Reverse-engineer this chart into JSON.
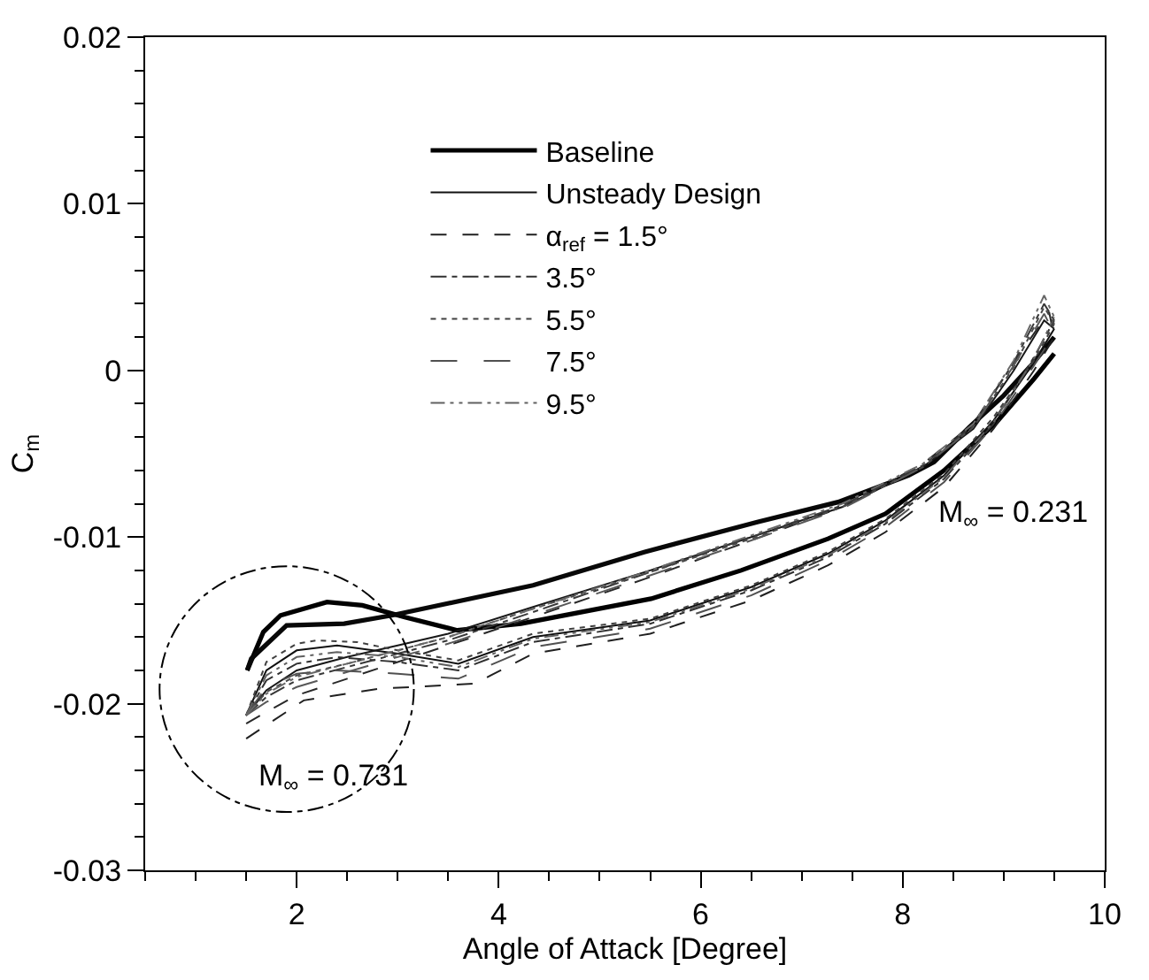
{
  "chart_data": {
    "type": "line",
    "xlabel": "Angle of Attack [Degree]",
    "ylabel": "C$_{m}$",
    "xlim": [
      0.5,
      10
    ],
    "xticks": [
      2,
      4,
      6,
      8,
      10
    ],
    "ylim": [
      -0.03,
      0.02
    ],
    "yticks": [
      -0.03,
      -0.02,
      -0.01,
      0,
      0.01,
      0.02
    ],
    "legend": "top",
    "marker": "none",
    "annotations": [
      "M$_{∞}$ = 0.231",
      "M$_{∞}$ = 0.731"
    ],
    "series": [
      {
        "name": "Baseline",
        "color": "#000000",
        "line_style": "solid",
        "x": [
          1.51,
          1.67,
          1.84,
          2.3,
          2.65,
          3.07,
          3.59,
          4.22,
          5.51,
          6.4,
          7.26,
          7.83,
          8.41,
          8.93,
          9.3,
          9.5
        ],
        "values": [
          -0.018,
          -0.0157,
          -0.0147,
          -0.0139,
          -0.0141,
          -0.0148,
          -0.0156,
          -0.0152,
          -0.0137,
          -0.012,
          -0.0101,
          -0.0086,
          -0.006,
          -0.0031,
          -0.0005,
          0.001
        ]
      },
      {
        "color": "#080808",
        "line_style": "solid",
        "x": [
          1.51,
          1.55,
          1.9,
          2.47,
          2.94,
          4.34,
          5.44,
          6.56,
          7.36,
          8.06,
          8.31,
          8.66,
          9.0,
          9.3,
          9.5
        ],
        "values": [
          -0.018,
          -0.0173,
          -0.0153,
          -0.0152,
          -0.0147,
          -0.0129,
          -0.0109,
          -0.0091,
          -0.0079,
          -0.0063,
          -0.0055,
          -0.0034,
          -0.0015,
          0.0005,
          0.002
        ]
      },
      {
        "name": "Unsteady Design",
        "color": "#101010",
        "line_style": "solid",
        "x": [
          1.5,
          1.7,
          2.0,
          2.4,
          3.0,
          3.6,
          4.34,
          5.5,
          6.5,
          7.26,
          7.83,
          8.41,
          8.9,
          9.3,
          9.5
        ],
        "values": [
          -0.0207,
          -0.018,
          -0.0168,
          -0.0165,
          -0.017,
          -0.0176,
          -0.016,
          -0.015,
          -0.013,
          -0.011,
          -0.009,
          -0.0063,
          -0.003,
          0.0005,
          0.0025
        ]
      },
      {
        "color": "#181818",
        "line_style": "solid",
        "x": [
          1.5,
          1.7,
          2.0,
          2.5,
          3.0,
          3.5,
          4.34,
          5.5,
          6.5,
          7.4,
          8.2,
          8.7,
          9.1,
          9.4,
          9.5
        ],
        "values": [
          -0.0207,
          -0.0192,
          -0.018,
          -0.0172,
          -0.0165,
          -0.0158,
          -0.0142,
          -0.012,
          -0.01,
          -0.0082,
          -0.0058,
          -0.0035,
          0.0,
          0.003,
          0.0025
        ]
      },
      {
        "name": "α$_{ref}$ = 1.5°",
        "color": "#202020",
        "line_style": "dashed",
        "x": [
          1.5,
          2.07,
          2.82,
          3.76,
          4.34,
          5.5,
          6.5,
          7.26,
          7.83,
          8.41,
          8.9,
          9.3,
          9.5
        ],
        "values": [
          -0.0221,
          -0.0198,
          -0.0191,
          -0.0188,
          -0.017,
          -0.0158,
          -0.0138,
          -0.0117,
          -0.0097,
          -0.007,
          -0.0035,
          0.0,
          0.002
        ]
      },
      {
        "color": "#282828",
        "line_style": "dashed",
        "x": [
          1.5,
          1.7,
          2.0,
          2.5,
          3.0,
          3.5,
          4.34,
          5.5,
          6.5,
          7.4,
          8.2,
          8.7,
          9.1,
          9.45,
          9.5
        ],
        "values": [
          -0.0212,
          -0.0205,
          -0.0195,
          -0.0185,
          -0.0175,
          -0.0165,
          -0.0148,
          -0.0124,
          -0.0102,
          -0.0082,
          -0.0056,
          -0.0032,
          0.0005,
          0.0035,
          0.002
        ]
      },
      {
        "name": "3.5°",
        "color": "#303030",
        "line_style": "dashdot",
        "x": [
          1.5,
          1.7,
          2.0,
          2.4,
          3.0,
          3.6,
          4.34,
          5.5,
          6.5,
          7.26,
          7.83,
          8.41,
          8.9,
          9.3,
          9.5
        ],
        "values": [
          -0.0207,
          -0.0186,
          -0.0176,
          -0.0172,
          -0.0175,
          -0.018,
          -0.0163,
          -0.0152,
          -0.0132,
          -0.0112,
          -0.0092,
          -0.0065,
          -0.0032,
          0.0008,
          0.003
        ]
      },
      {
        "color": "#383838",
        "line_style": "dashdot",
        "x": [
          1.5,
          1.7,
          2.0,
          2.5,
          3.0,
          3.5,
          4.34,
          5.5,
          6.5,
          7.4,
          8.2,
          8.7,
          9.1,
          9.4,
          9.5
        ],
        "values": [
          -0.0207,
          -0.0196,
          -0.0186,
          -0.0178,
          -0.017,
          -0.0162,
          -0.0145,
          -0.0121,
          -0.01,
          -0.0081,
          -0.0057,
          -0.0033,
          0.0005,
          0.004,
          0.003
        ]
      },
      {
        "name": "5.5°",
        "color": "#404040",
        "line_style": "dotted",
        "x": [
          1.5,
          1.7,
          2.0,
          2.2,
          2.6,
          3.0,
          3.6,
          4.34,
          5.5,
          6.5,
          7.26,
          7.83,
          8.41,
          8.9,
          9.3,
          9.5
        ],
        "values": [
          -0.0207,
          -0.0175,
          -0.0164,
          -0.0162,
          -0.0163,
          -0.0168,
          -0.0174,
          -0.0158,
          -0.0149,
          -0.0129,
          -0.0109,
          -0.0089,
          -0.0062,
          -0.0028,
          0.0006,
          0.0028
        ]
      },
      {
        "color": "#484848",
        "line_style": "dotted",
        "x": [
          1.5,
          1.7,
          2.0,
          2.5,
          3.0,
          3.5,
          4.34,
          5.5,
          6.5,
          7.4,
          8.2,
          8.7,
          9.1,
          9.4,
          9.5
        ],
        "values": [
          -0.0207,
          -0.0193,
          -0.0183,
          -0.0176,
          -0.0168,
          -0.016,
          -0.0143,
          -0.0121,
          -0.0101,
          -0.0082,
          -0.0058,
          -0.0034,
          0.0002,
          0.0038,
          0.0028
        ]
      },
      {
        "name": "7.5°",
        "color": "#505050",
        "line_style": "longdash",
        "x": [
          1.5,
          1.7,
          2.0,
          2.4,
          3.0,
          3.6,
          4.34,
          5.5,
          6.5,
          7.26,
          7.83,
          8.41,
          8.9,
          9.3,
          9.5
        ],
        "values": [
          -0.0207,
          -0.019,
          -0.0182,
          -0.018,
          -0.0182,
          -0.0185,
          -0.0166,
          -0.0155,
          -0.0135,
          -0.0114,
          -0.0094,
          -0.0067,
          -0.0033,
          0.0003,
          0.0022
        ]
      },
      {
        "color": "#585858",
        "line_style": "longdash",
        "x": [
          1.5,
          1.7,
          2.0,
          2.5,
          3.0,
          3.5,
          4.34,
          5.5,
          6.5,
          7.4,
          8.2,
          8.7,
          9.1,
          9.4,
          9.5
        ],
        "values": [
          -0.0207,
          -0.0199,
          -0.019,
          -0.0181,
          -0.0172,
          -0.0164,
          -0.0147,
          -0.0123,
          -0.0102,
          -0.0083,
          -0.0058,
          -0.0034,
          0.0003,
          0.0034,
          0.0022
        ]
      },
      {
        "name": "9.5°",
        "color": "#606060",
        "line_style": "dashdotdot",
        "x": [
          1.5,
          1.7,
          2.0,
          2.4,
          3.0,
          3.6,
          4.34,
          5.5,
          6.5,
          7.26,
          7.83,
          8.41,
          8.9,
          9.3,
          9.5
        ],
        "values": [
          -0.0207,
          -0.0183,
          -0.0172,
          -0.0169,
          -0.0172,
          -0.0178,
          -0.0161,
          -0.0151,
          -0.0131,
          -0.0111,
          -0.0091,
          -0.0064,
          -0.0031,
          0.0007,
          0.0032
        ]
      },
      {
        "color": "#686868",
        "line_style": "dashdotdot",
        "x": [
          1.5,
          1.7,
          2.0,
          2.5,
          3.0,
          3.5,
          4.34,
          5.5,
          6.5,
          7.4,
          8.2,
          8.7,
          9.1,
          9.4,
          9.5
        ],
        "values": [
          -0.0207,
          -0.0194,
          -0.0184,
          -0.0176,
          -0.0168,
          -0.016,
          -0.0143,
          -0.012,
          -0.0099,
          -0.008,
          -0.0056,
          -0.0032,
          0.0006,
          0.0045,
          0.0032
        ]
      }
    ]
  }
}
